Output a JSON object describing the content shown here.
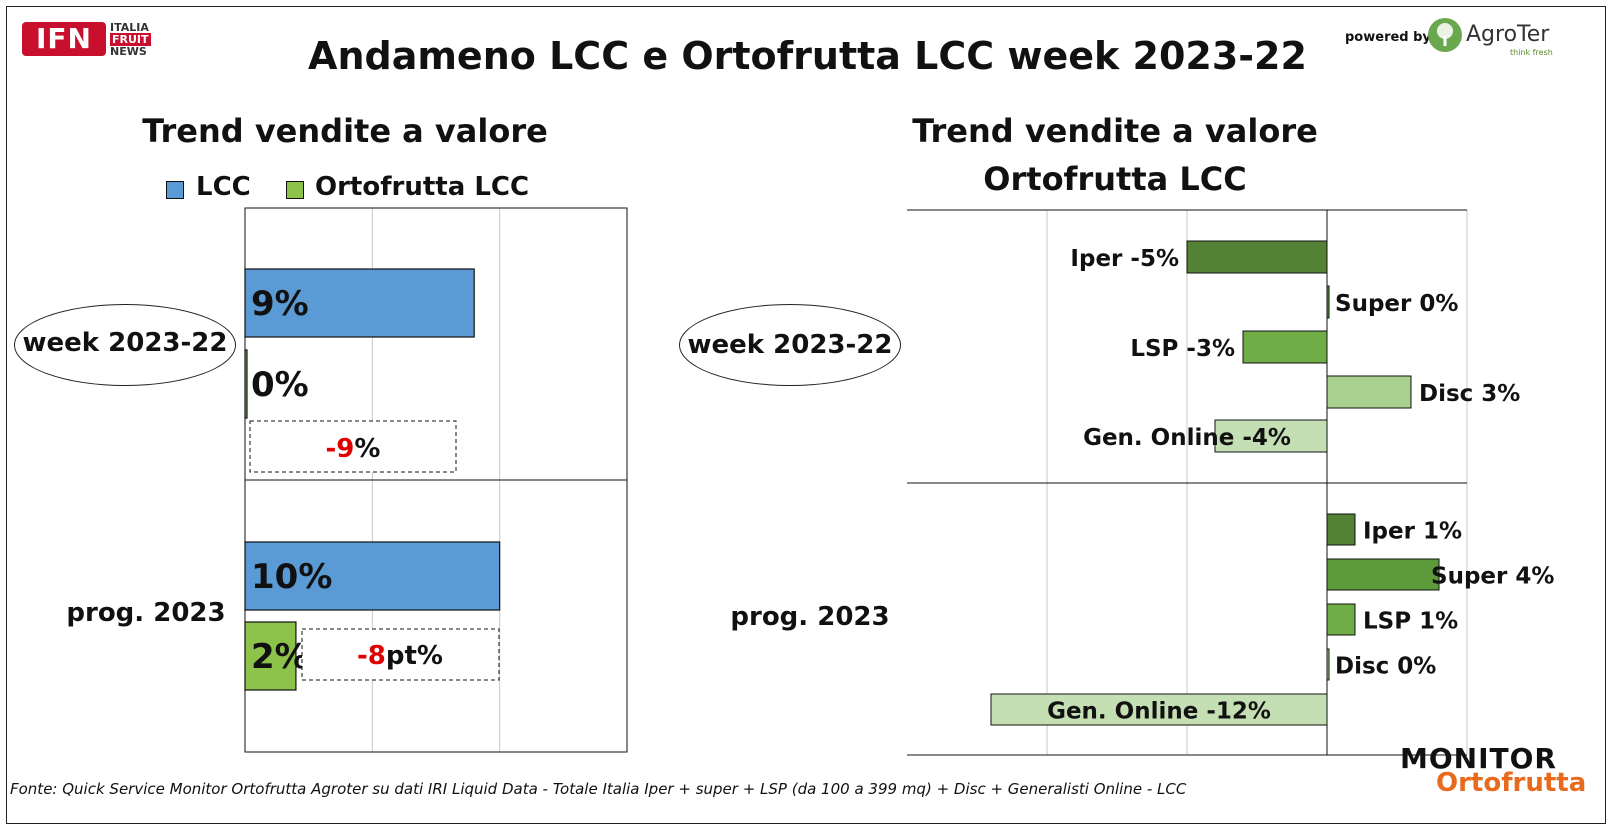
{
  "title": "Andameno LCC e Ortofrutta LCC week 2023-22",
  "logos": {
    "ifn": "IFN",
    "ifn_tagline": [
      "ITALIA",
      "FRUIT",
      "NEWS"
    ],
    "powered_by": "powered by",
    "agroter": "AgroTer",
    "agroter_slogan": "think fresh",
    "monitor_line1": "MONITOR",
    "monitor_line2": "Ortofrutta"
  },
  "footer": "Fonte: Quick Service Monitor Ortofrutta Agroter su dati IRI Liquid Data - Totale Italia Iper + super + LSP (da 100 a 399 mq) + Disc + Generalisti Online - LCC",
  "colors": {
    "lcc": "#5b9bd5",
    "ortofrutta_lcc": "#8dc34a",
    "iper": "#548235",
    "super": "#5d9a3a",
    "lsp": "#70ad47",
    "disc": "#a9d08e",
    "gen_online": "#c5dfb4",
    "negative_text": "#e00000"
  },
  "chart_data": [
    {
      "type": "bar",
      "orientation": "horizontal",
      "title": "Trend vendite a valore",
      "categories": [
        "week 2023-22",
        "prog. 2023"
      ],
      "series": [
        {
          "name": "LCC",
          "values": [
            9,
            10
          ],
          "labels": [
            "9%",
            "10%"
          ]
        },
        {
          "name": "Ortofrutta LCC",
          "values": [
            0,
            2
          ],
          "labels": [
            "0%",
            "2%"
          ]
        }
      ],
      "annotations": [
        {
          "category": "week 2023-22",
          "neg": "-9",
          "rest": "%"
        },
        {
          "category": "prog. 2023",
          "neg": "-8",
          "rest": "pt%"
        }
      ],
      "xlim": [
        0,
        15
      ],
      "grid": true,
      "legend": "top"
    },
    {
      "type": "bar",
      "orientation": "horizontal",
      "title": [
        "Trend vendite a valore",
        "Ortofrutta LCC"
      ],
      "categories": [
        "week 2023-22",
        "prog. 2023"
      ],
      "series": [
        {
          "name": "Iper",
          "values": [
            -5,
            1
          ],
          "labels": [
            "Iper -5%",
            "Iper 1%"
          ]
        },
        {
          "name": "Super",
          "values": [
            0,
            4
          ],
          "labels": [
            "Super 0%",
            "Super 4%"
          ]
        },
        {
          "name": "LSP",
          "values": [
            -3,
            1
          ],
          "labels": [
            "LSP -3%",
            "LSP 1%"
          ]
        },
        {
          "name": "Disc",
          "values": [
            3,
            0
          ],
          "labels": [
            "Disc 3%",
            "Disc 0%"
          ]
        },
        {
          "name": "Gen. Online",
          "values": [
            -4,
            -12
          ],
          "labels": [
            "Gen. Online -4%",
            "Gen. Online -12%"
          ]
        }
      ],
      "xlim": [
        -15,
        5
      ],
      "grid": true,
      "legend": "none"
    }
  ]
}
